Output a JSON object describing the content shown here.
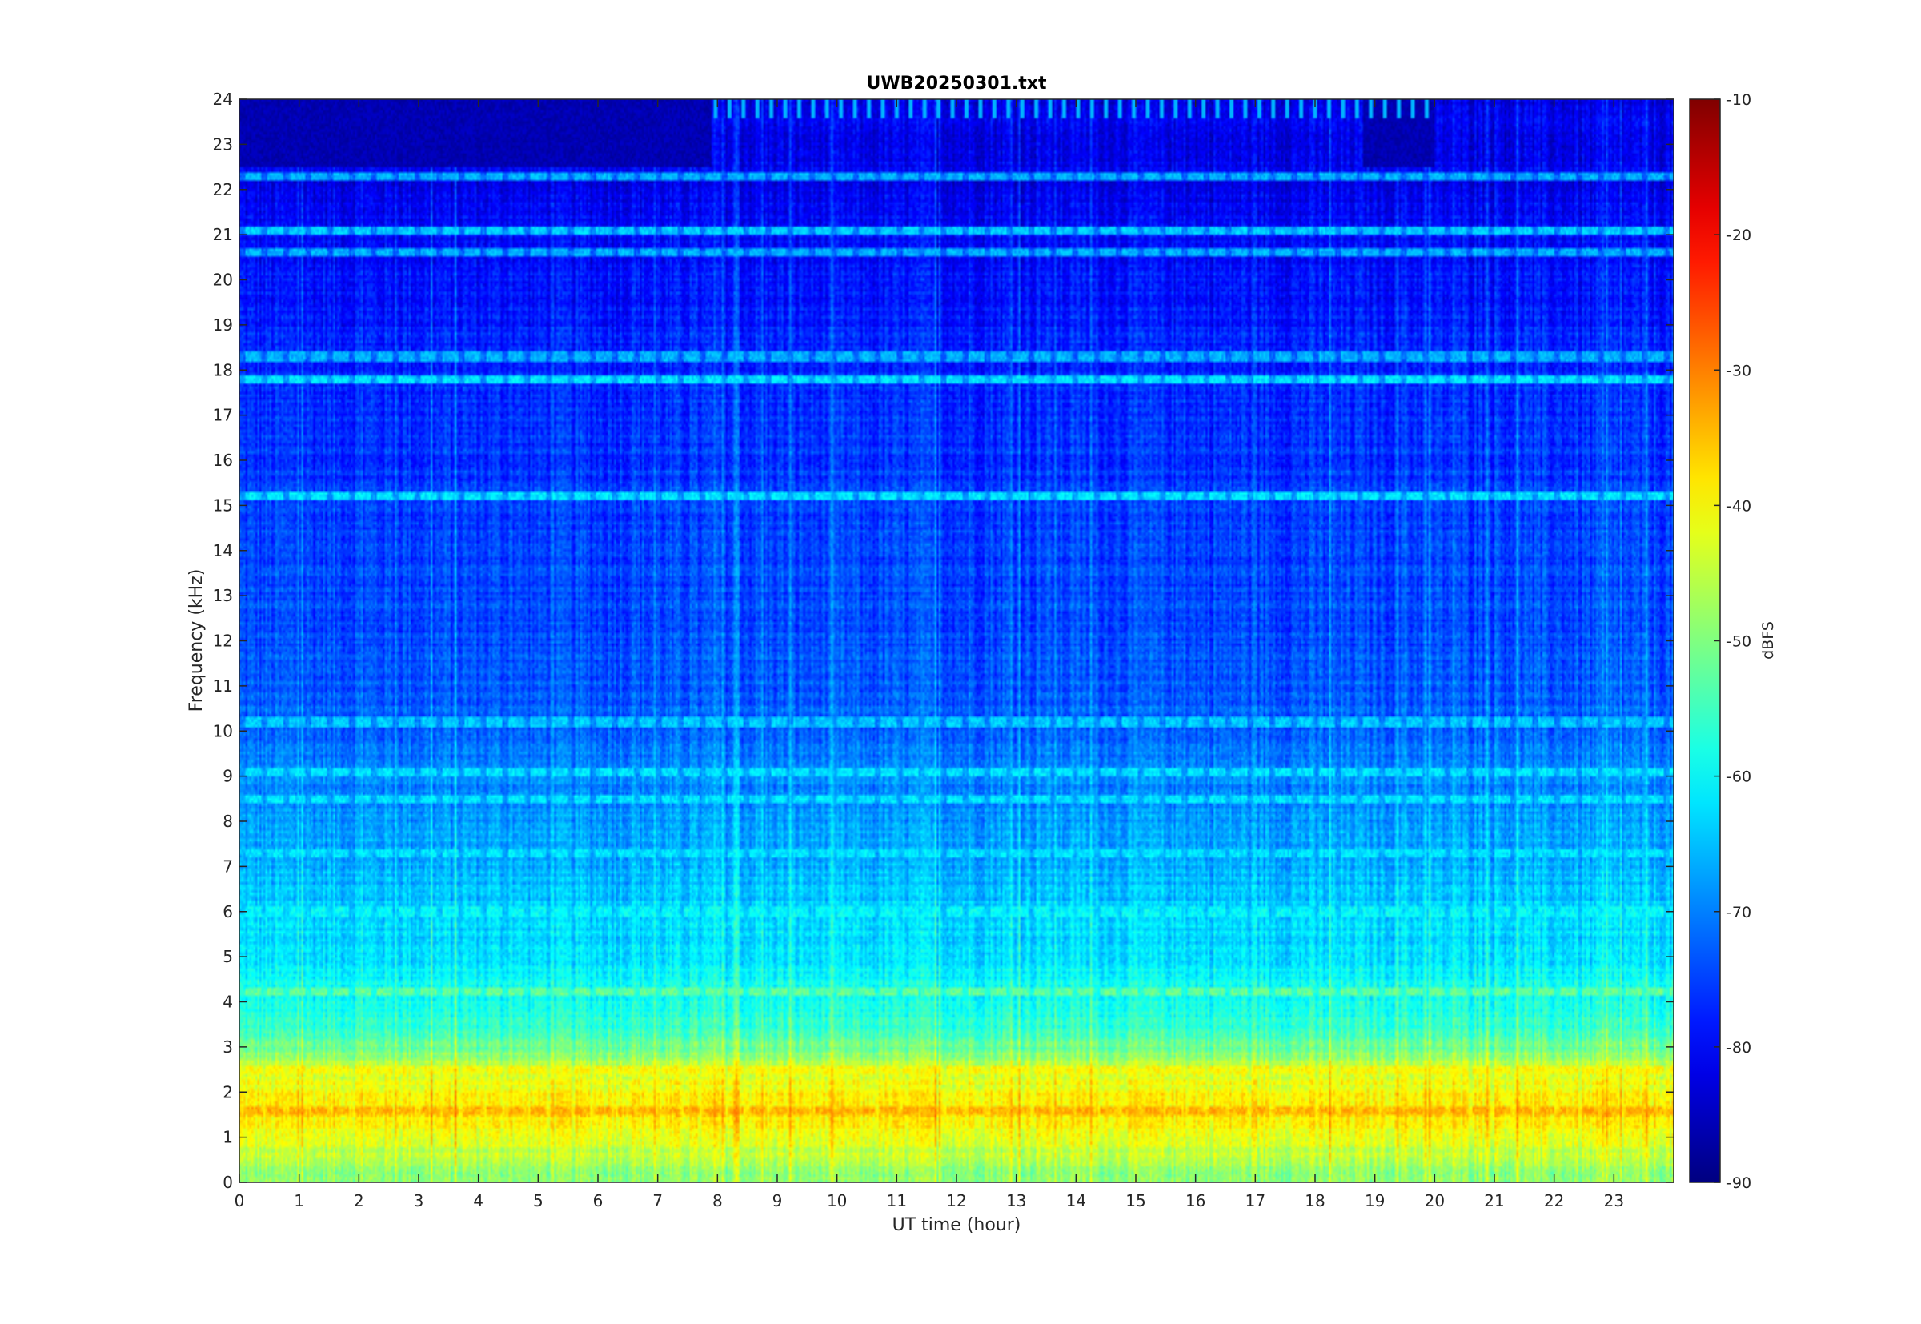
{
  "chart_data": {
    "type": "heatmap",
    "title": "UWB20250301.txt",
    "xlabel": "UT time (hour)",
    "ylabel": "Frequency (kHz)",
    "colorbar_label": "dBFS",
    "xlim": [
      0,
      24
    ],
    "ylim": [
      0,
      24
    ],
    "clim": [
      -90,
      -10
    ],
    "x_ticks": [
      0,
      1,
      2,
      3,
      4,
      5,
      6,
      7,
      8,
      9,
      10,
      11,
      12,
      13,
      14,
      15,
      16,
      17,
      18,
      19,
      20,
      21,
      22,
      23
    ],
    "y_ticks": [
      0,
      1,
      2,
      3,
      4,
      5,
      6,
      7,
      8,
      9,
      10,
      11,
      12,
      13,
      14,
      15,
      16,
      17,
      18,
      19,
      20,
      21,
      22,
      23,
      24
    ],
    "colorbar_ticks": [
      -10,
      -20,
      -30,
      -40,
      -50,
      -60,
      -70,
      -80,
      -90
    ],
    "colormap": "jet",
    "grid": false,
    "background_profile": {
      "frequency_khz": [
        0,
        0.5,
        1,
        1.5,
        2,
        2.5,
        3,
        3.5,
        4,
        4.5,
        5,
        6,
        7,
        8,
        9,
        10,
        12,
        14,
        16,
        18,
        20,
        21,
        22,
        23,
        24
      ],
      "level_dbfs": [
        -50,
        -46,
        -42,
        -38,
        -40,
        -44,
        -52,
        -56,
        -58,
        -60,
        -62,
        -64,
        -66,
        -68,
        -70,
        -72,
        -74,
        -75,
        -76,
        -77,
        -79,
        -80,
        -81,
        -82,
        -82
      ]
    },
    "horizontal_lines": [
      {
        "frequency_khz": 1.6,
        "level_dbfs": -34
      },
      {
        "frequency_khz": 2.5,
        "level_dbfs": -40
      },
      {
        "frequency_khz": 4.2,
        "level_dbfs": -52
      },
      {
        "frequency_khz": 6.0,
        "level_dbfs": -60
      },
      {
        "frequency_khz": 7.3,
        "level_dbfs": -62
      },
      {
        "frequency_khz": 8.5,
        "level_dbfs": -62
      },
      {
        "frequency_khz": 9.1,
        "level_dbfs": -62
      },
      {
        "frequency_khz": 10.2,
        "level_dbfs": -64
      },
      {
        "frequency_khz": 15.2,
        "level_dbfs": -62
      },
      {
        "frequency_khz": 17.8,
        "level_dbfs": -62
      },
      {
        "frequency_khz": 18.3,
        "level_dbfs": -66
      },
      {
        "frequency_khz": 20.6,
        "level_dbfs": -66
      },
      {
        "frequency_khz": 21.1,
        "level_dbfs": -64
      },
      {
        "frequency_khz": 22.3,
        "level_dbfs": -66
      }
    ],
    "quiet_regions": [
      {
        "x": [
          0,
          7.9
        ],
        "y": [
          22.5,
          24
        ],
        "level_dbfs": -86
      },
      {
        "x": [
          18.8,
          20
        ],
        "y": [
          22.5,
          24
        ],
        "level_dbfs": -86
      }
    ],
    "tones_upper": [
      {
        "x": [
          7.9,
          20
        ],
        "y": [
          23.6,
          24
        ],
        "level_dbfs": -66
      }
    ]
  }
}
